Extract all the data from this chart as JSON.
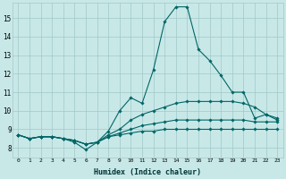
{
  "title": "",
  "xlabel": "Humidex (Indice chaleur)",
  "ylabel": "",
  "bg_color": "#c8e8e8",
  "grid_color": "#a0c8c8",
  "line_color": "#006666",
  "x_ticks": [
    0,
    1,
    2,
    3,
    4,
    5,
    6,
    7,
    8,
    9,
    10,
    11,
    12,
    13,
    14,
    15,
    16,
    17,
    18,
    19,
    20,
    21,
    22,
    23
  ],
  "ylim": [
    7.5,
    15.8
  ],
  "xlim": [
    -0.5,
    23.5
  ],
  "yticks": [
    8,
    9,
    10,
    11,
    12,
    13,
    14,
    15
  ],
  "lines": [
    [
      8.7,
      8.5,
      8.6,
      8.6,
      8.5,
      8.3,
      7.9,
      8.3,
      8.9,
      10.0,
      10.7,
      10.4,
      12.2,
      14.8,
      15.6,
      15.6,
      13.3,
      12.7,
      11.9,
      11.0,
      11.0,
      9.6,
      9.8,
      9.5
    ],
    [
      8.7,
      8.5,
      8.6,
      8.6,
      8.5,
      8.4,
      8.2,
      8.3,
      8.7,
      9.0,
      9.5,
      9.8,
      10.0,
      10.2,
      10.4,
      10.5,
      10.5,
      10.5,
      10.5,
      10.5,
      10.4,
      10.2,
      9.8,
      9.6
    ],
    [
      8.7,
      8.5,
      8.6,
      8.6,
      8.5,
      8.4,
      8.2,
      8.3,
      8.6,
      8.8,
      9.0,
      9.2,
      9.3,
      9.4,
      9.5,
      9.5,
      9.5,
      9.5,
      9.5,
      9.5,
      9.5,
      9.4,
      9.4,
      9.4
    ],
    [
      8.7,
      8.5,
      8.6,
      8.6,
      8.5,
      8.4,
      8.2,
      8.3,
      8.6,
      8.7,
      8.8,
      8.9,
      8.9,
      9.0,
      9.0,
      9.0,
      9.0,
      9.0,
      9.0,
      9.0,
      9.0,
      9.0,
      9.0,
      9.0
    ]
  ]
}
